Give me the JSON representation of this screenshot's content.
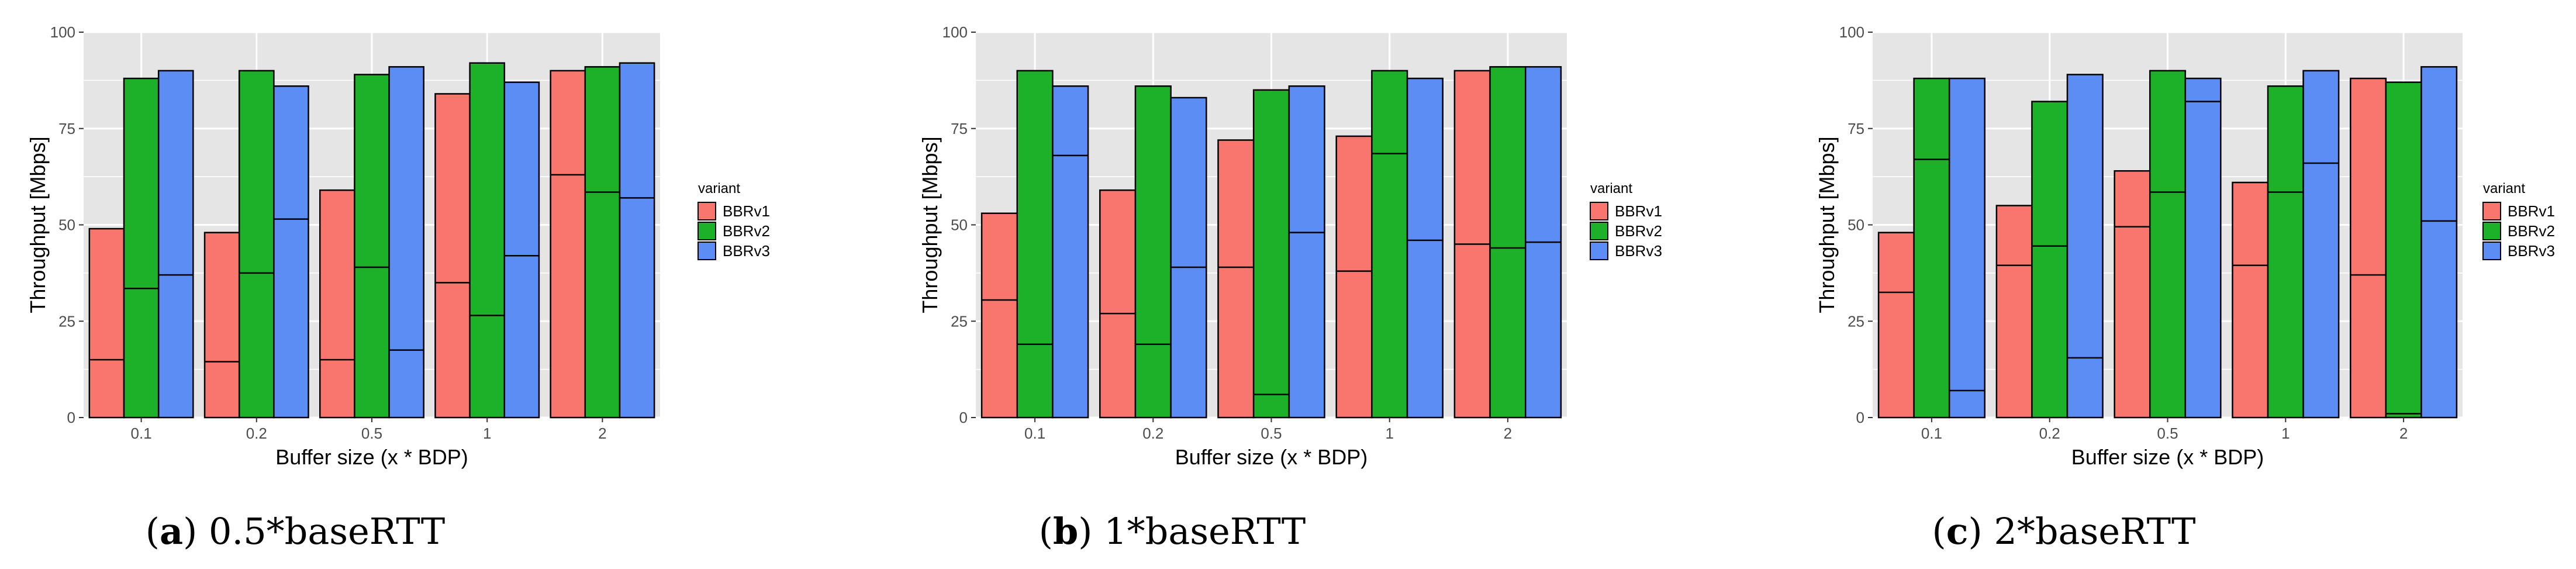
{
  "chart_data": [
    {
      "type": "bar",
      "panel_label": "a",
      "caption": "0.5*baseRTT",
      "xlabel": "Buffer size (x * BDP)",
      "ylabel": "Throughput [Mbps]",
      "ylim": [
        0,
        100
      ],
      "yticks": [
        "0",
        "25",
        "50",
        "75",
        "100"
      ],
      "categories": [
        "0.1",
        "0.2",
        "0.5",
        "1",
        "2"
      ],
      "legend_title": "variant",
      "legend_position": "right",
      "series": [
        {
          "name": "BBRv1",
          "color": "#F8766D",
          "values": [
            49,
            48,
            59,
            84,
            90
          ],
          "inner_line": [
            15,
            14.5,
            15,
            35,
            63
          ]
        },
        {
          "name": "BBRv2",
          "color": "#1DB12A",
          "values": [
            88,
            90,
            89,
            92,
            91
          ],
          "inner_line": [
            33.5,
            37.5,
            39,
            26.5,
            58.5
          ]
        },
        {
          "name": "BBRv3",
          "color": "#5C8DF5",
          "values": [
            90,
            86,
            91,
            87,
            92
          ],
          "inner_line": [
            37,
            51.5,
            17.5,
            42,
            57
          ]
        }
      ]
    },
    {
      "type": "bar",
      "panel_label": "b",
      "caption": "1*baseRTT",
      "xlabel": "Buffer size (x * BDP)",
      "ylabel": "Throughput [Mbps]",
      "ylim": [
        0,
        100
      ],
      "yticks": [
        "0",
        "25",
        "50",
        "75",
        "100"
      ],
      "categories": [
        "0.1",
        "0.2",
        "0.5",
        "1",
        "2"
      ],
      "legend_title": "variant",
      "legend_position": "right",
      "series": [
        {
          "name": "BBRv1",
          "color": "#F8766D",
          "values": [
            53,
            59,
            72,
            73,
            90
          ],
          "inner_line": [
            30.5,
            27,
            39,
            38,
            45
          ]
        },
        {
          "name": "BBRv2",
          "color": "#1DB12A",
          "values": [
            90,
            86,
            85,
            90,
            91
          ],
          "inner_line": [
            19,
            19,
            6,
            68.5,
            44
          ]
        },
        {
          "name": "BBRv3",
          "color": "#5C8DF5",
          "values": [
            86,
            83,
            86,
            88,
            91
          ],
          "inner_line": [
            68,
            39,
            48,
            46,
            45.5
          ]
        }
      ]
    },
    {
      "type": "bar",
      "panel_label": "c",
      "caption": "2*baseRTT",
      "xlabel": "Buffer size (x * BDP)",
      "ylabel": "Throughput [Mbps]",
      "ylim": [
        0,
        100
      ],
      "yticks": [
        "0",
        "25",
        "50",
        "75",
        "100"
      ],
      "categories": [
        "0.1",
        "0.2",
        "0.5",
        "1",
        "2"
      ],
      "legend_title": "variant",
      "legend_position": "right",
      "series": [
        {
          "name": "BBRv1",
          "color": "#F8766D",
          "values": [
            48,
            55,
            64,
            61,
            88
          ],
          "inner_line": [
            32.5,
            39.5,
            49.5,
            39.5,
            37
          ]
        },
        {
          "name": "BBRv2",
          "color": "#1DB12A",
          "values": [
            88,
            82,
            90,
            86,
            87
          ],
          "inner_line": [
            67,
            44.5,
            58.5,
            58.5,
            1
          ]
        },
        {
          "name": "BBRv3",
          "color": "#5C8DF5",
          "values": [
            88,
            89,
            88,
            90,
            91
          ],
          "inner_line": [
            7,
            15.5,
            82,
            66,
            51
          ]
        }
      ]
    }
  ],
  "style": {
    "panel_background": "#E5E5E5",
    "gridline_color": "#FFFFFF",
    "bar_outline": "#000000"
  }
}
